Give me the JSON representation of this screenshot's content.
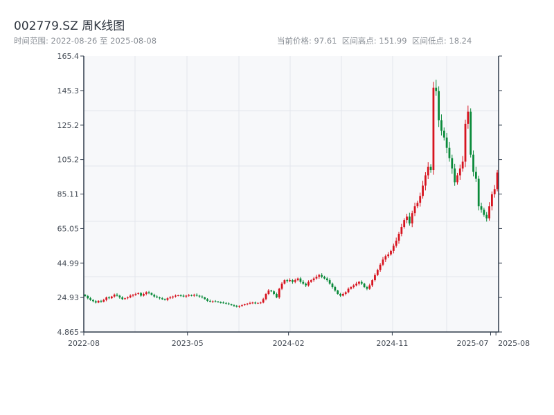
{
  "header": {
    "title": "002779.SZ 周K线图",
    "range": "时间范围: 2022-08-26 至 2025-08-08",
    "stats": "当前价格: 97.61  区间高点: 151.99  区间低点: 18.24"
  },
  "colors": {
    "up": "#d7141f",
    "down": "#0a8a3a",
    "axis": "#2e3a4a",
    "grid": "#e3e6ec",
    "plot_bg": "#f7f8fa"
  },
  "chart_data": {
    "type": "candlestick",
    "title": "002779.SZ 周K线图",
    "xlabel": "",
    "ylabel": "",
    "ylim": [
      4.865,
      165.4
    ],
    "yticks": [
      "165.4",
      "145.3",
      "125.2",
      "105.2",
      "85.11",
      "65.05",
      "44.99",
      "24.93",
      "4.865"
    ],
    "xticks": [
      {
        "label": "2022-08",
        "week": 0
      },
      {
        "label": "2023-05",
        "week": 39
      },
      {
        "label": "2024-02",
        "week": 77
      },
      {
        "label": "2024-11",
        "week": 116
      },
      {
        "label": "2025-07",
        "week": 153
      },
      {
        "label": "2025-08",
        "week": 155
      }
    ],
    "grid": true,
    "period": "weekly",
    "start": "2022-08-26",
    "end": "2025-08-08",
    "first_open": 26.5,
    "close": [
      25.8,
      24.5,
      23.5,
      22.8,
      22,
      23,
      22.5,
      23.5,
      25,
      24.5,
      25.5,
      26.6,
      26,
      25,
      24,
      24.5,
      25,
      26,
      26.5,
      27,
      27.5,
      26,
      27,
      28,
      27.5,
      26.5,
      25.5,
      25,
      24.5,
      24,
      23.5,
      24.5,
      25,
      25.5,
      26,
      26.2,
      26,
      25.5,
      26,
      26.3,
      26,
      26.5,
      26,
      25.5,
      25,
      24,
      23,
      22.5,
      22.8,
      22.6,
      22.2,
      22,
      21.8,
      21.5,
      21,
      20.5,
      20,
      19.5,
      20,
      20.5,
      21,
      21.3,
      21.8,
      22,
      21.5,
      21.8,
      22,
      24,
      27,
      29,
      28.5,
      27,
      25,
      30,
      33,
      35,
      34.5,
      35,
      34,
      35,
      36,
      34,
      33,
      32,
      34,
      35,
      36,
      37,
      38,
      37,
      36,
      35,
      33,
      31,
      29,
      27,
      26,
      27,
      28,
      30,
      31,
      32,
      33,
      34,
      33,
      31,
      30,
      32,
      35,
      38,
      41,
      44,
      47,
      49,
      50,
      52,
      55,
      58,
      62,
      66,
      70,
      72,
      68,
      74,
      78,
      80,
      84,
      90,
      96,
      101,
      99,
      147,
      145,
      128,
      122,
      118,
      112,
      106,
      100,
      92,
      96,
      100,
      104,
      126,
      133,
      108,
      98,
      94,
      78,
      76,
      73,
      71,
      78,
      85,
      88,
      97.61
    ],
    "last_price": 97.61,
    "high": 151.99,
    "low": 18.24
  }
}
